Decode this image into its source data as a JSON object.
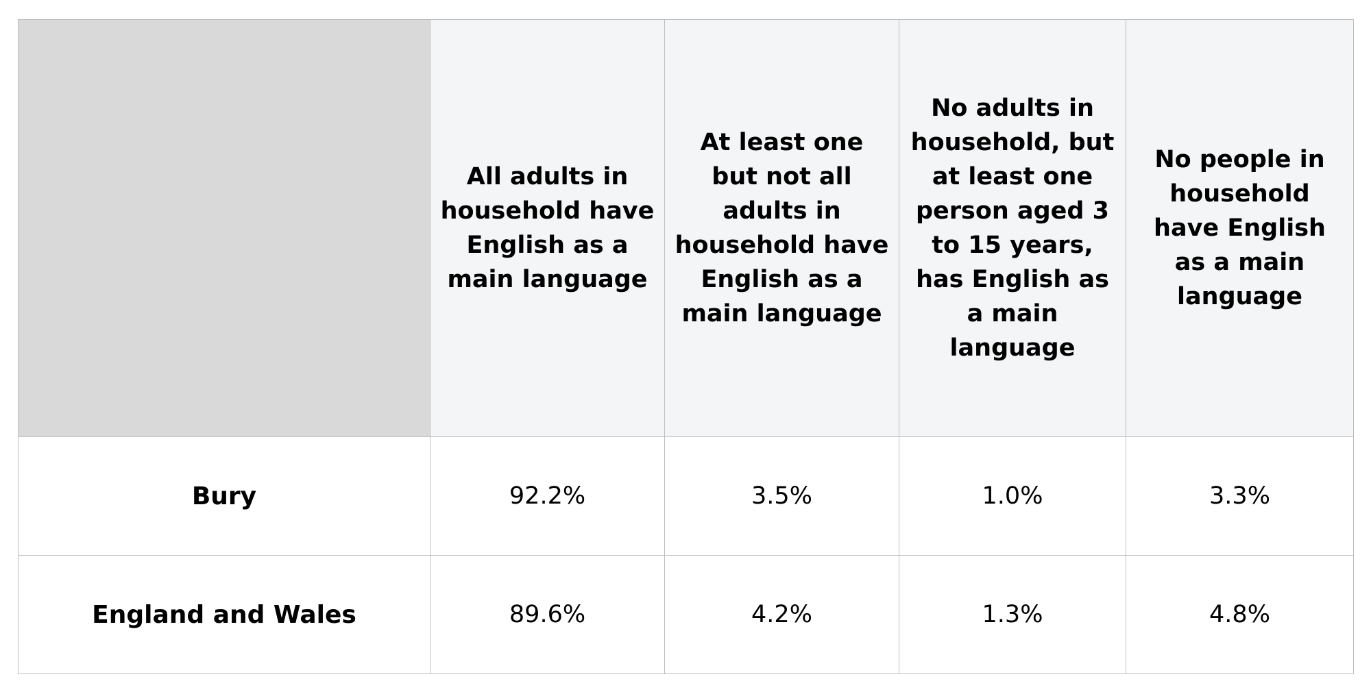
{
  "table": {
    "columns": [
      "All adults in household have English as a main language",
      "At least one but not all adults in household have English as a main language",
      "No adults in household, but at least one person aged 3 to 15 years, has English as a main language",
      "No people in household have English as a main language"
    ],
    "rows": [
      {
        "label": "Bury",
        "values": [
          "92.2%",
          "3.5%",
          "1.0%",
          "3.3%"
        ]
      },
      {
        "label": "England and Wales",
        "values": [
          "89.6%",
          "4.2%",
          "1.3%",
          "4.8%"
        ]
      }
    ]
  }
}
